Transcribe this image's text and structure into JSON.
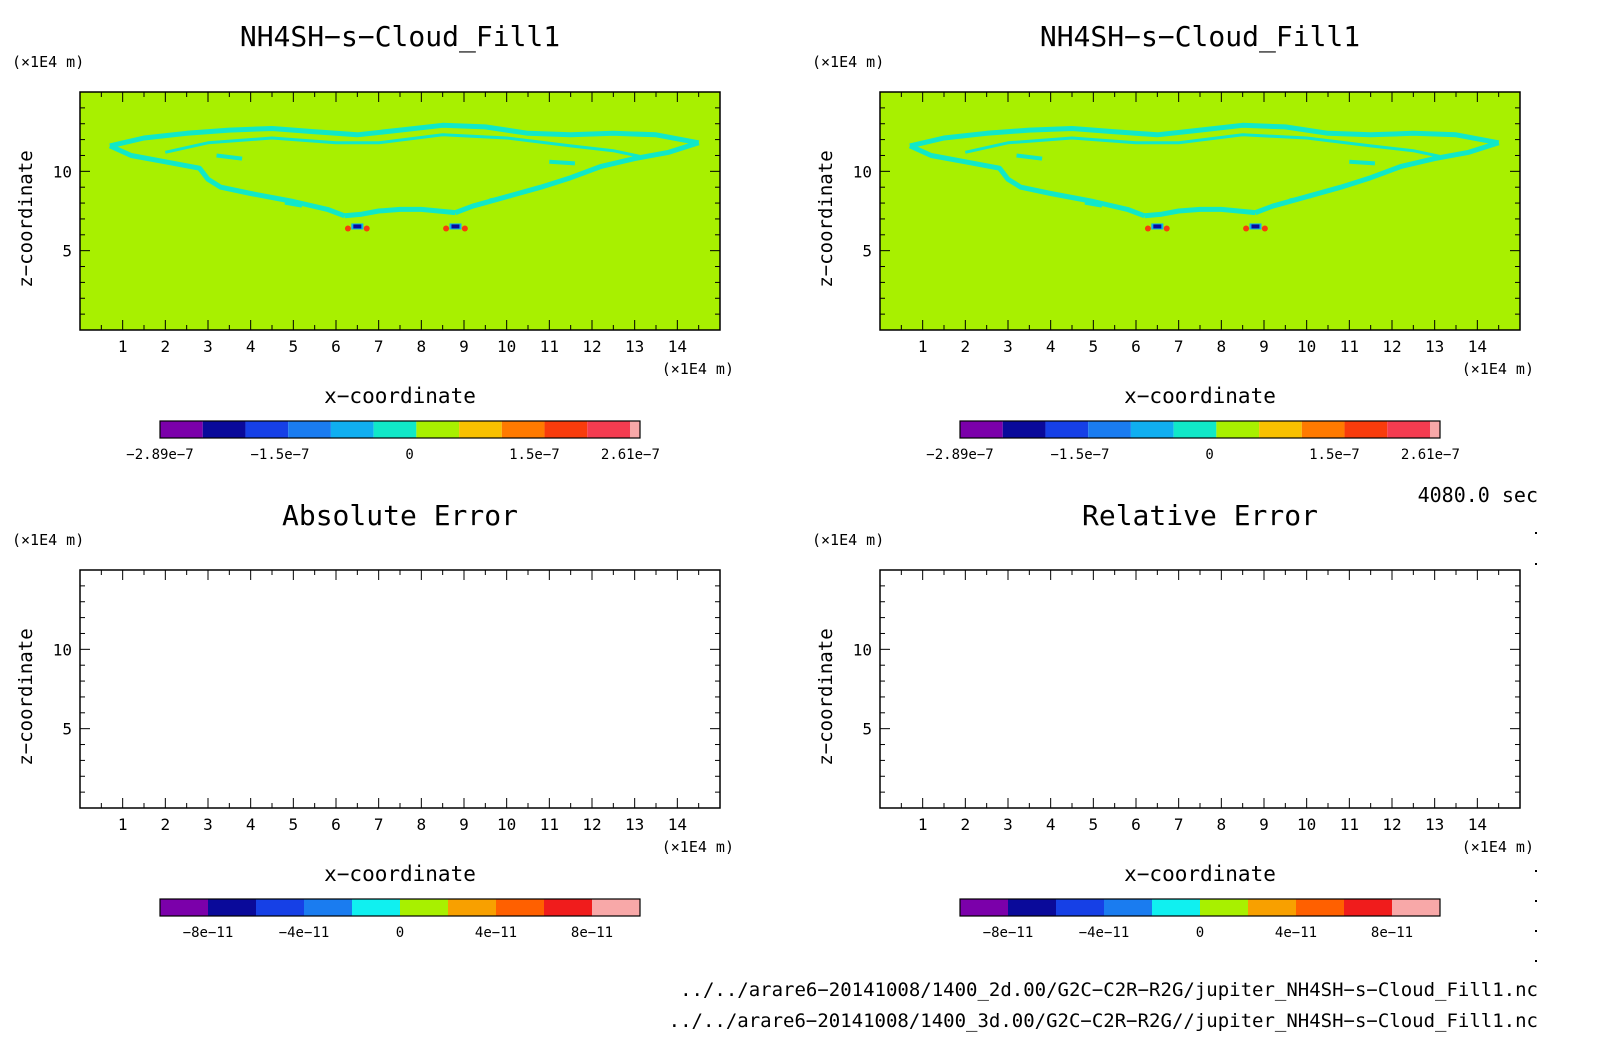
{
  "chart_data": [
    {
      "type": "heatmap",
      "title": "NH4SH−s−Cloud_Fill1",
      "xlabel": "x−coordinate",
      "ylabel": "z−coordinate",
      "x_unit": "(×1E4 m)",
      "y_unit": "(×1E4 m)",
      "xlim": [
        0,
        15
      ],
      "ylim": [
        0,
        15
      ],
      "x_ticks": [
        1,
        2,
        3,
        4,
        5,
        6,
        7,
        8,
        9,
        10,
        11,
        12,
        13,
        14
      ],
      "y_ticks": [
        5,
        10
      ],
      "colorbar": {
        "colors": [
          "#7b00aa",
          "#0a0a9a",
          "#1640e6",
          "#1a7cf0",
          "#10aef0",
          "#10e8c8",
          "#a8f000",
          "#f8c000",
          "#ff7a00",
          "#f83c0c",
          "#f43c50",
          "#f8a8a8"
        ],
        "tick_labels": [
          "−2.89e−7",
          "−1.5e−7",
          "0",
          "1.5e−7",
          "2.61e−7"
        ]
      },
      "background_value": 0,
      "feature": "cloud band boundary at about 1.3e-8 (cyan) outlining a bat-wing shaped region from x≈0.7 to x≈14.5, z≈6.5 to z≈12.5; two small dipoles at x≈6.5, z≈6.4 and x≈8.8, z≈6.4"
    },
    {
      "type": "heatmap",
      "title": "NH4SH−s−Cloud_Fill1",
      "xlabel": "x−coordinate",
      "ylabel": "z−coordinate",
      "x_unit": "(×1E4 m)",
      "y_unit": "(×1E4 m)",
      "xlim": [
        0,
        15
      ],
      "ylim": [
        0,
        15
      ],
      "x_ticks": [
        1,
        2,
        3,
        4,
        5,
        6,
        7,
        8,
        9,
        10,
        11,
        12,
        13,
        14
      ],
      "y_ticks": [
        5,
        10
      ],
      "colorbar": {
        "colors": [
          "#7b00aa",
          "#0a0a9a",
          "#1640e6",
          "#1a7cf0",
          "#10aef0",
          "#10e8c8",
          "#a8f000",
          "#f8c000",
          "#ff7a00",
          "#f83c0c",
          "#f43c50",
          "#f8a8a8"
        ],
        "tick_labels": [
          "−2.89e−7",
          "−1.5e−7",
          "0",
          "1.5e−7",
          "2.61e−7"
        ]
      },
      "background_value": 0
    },
    {
      "type": "heatmap",
      "title": "Absolute Error",
      "xlabel": "x−coordinate",
      "ylabel": "z−coordinate",
      "x_unit": "(×1E4 m)",
      "y_unit": "(×1E4 m)",
      "xlim": [
        0,
        15
      ],
      "ylim": [
        0,
        15
      ],
      "x_ticks": [
        1,
        2,
        3,
        4,
        5,
        6,
        7,
        8,
        9,
        10,
        11,
        12,
        13,
        14
      ],
      "y_ticks": [
        5,
        10
      ],
      "colorbar": {
        "colors": [
          "#7b00aa",
          "#0a0a9a",
          "#1640e6",
          "#1a7cf0",
          "#10f0f0",
          "#a8f000",
          "#f8a000",
          "#ff6000",
          "#f01c1c",
          "#f8a8a8"
        ],
        "tick_labels": [
          "−8e−11",
          "−4e−11",
          "0",
          "4e−11",
          "8e−11"
        ]
      },
      "filled": false
    },
    {
      "type": "heatmap",
      "title": "Relative Error",
      "xlabel": "x−coordinate",
      "ylabel": "z−coordinate",
      "x_unit": "(×1E4 m)",
      "y_unit": "(×1E4 m)",
      "xlim": [
        0,
        15
      ],
      "ylim": [
        0,
        15
      ],
      "x_ticks": [
        1,
        2,
        3,
        4,
        5,
        6,
        7,
        8,
        9,
        10,
        11,
        12,
        13,
        14
      ],
      "y_ticks": [
        5,
        10
      ],
      "colorbar": {
        "colors": [
          "#7b00aa",
          "#0a0a9a",
          "#1640e6",
          "#1a7cf0",
          "#10f0f0",
          "#a8f000",
          "#f8a000",
          "#ff6000",
          "#f01c1c",
          "#f8a8a8"
        ],
        "tick_labels": [
          "−8e−11",
          "−4e−11",
          "0",
          "4e−11",
          "8e−11"
        ]
      },
      "filled": false
    }
  ],
  "time_label": "4080.0 sec",
  "footer": {
    "file1": "../../arare6−20141008/1400_2d.00/G2C−C2R−R2G/jupiter_NH4SH−s−Cloud_Fill1.nc",
    "file2": "../../arare6−20141008/1400_3d.00/G2C−C2R−R2G//jupiter_NH4SH−s−Cloud_Fill1.nc"
  },
  "colors": {
    "field_background": "#a8f000",
    "cloud_band": "#10e8c8",
    "negative_core": "#0a0a9a",
    "positive_core": "#f83c0c"
  }
}
